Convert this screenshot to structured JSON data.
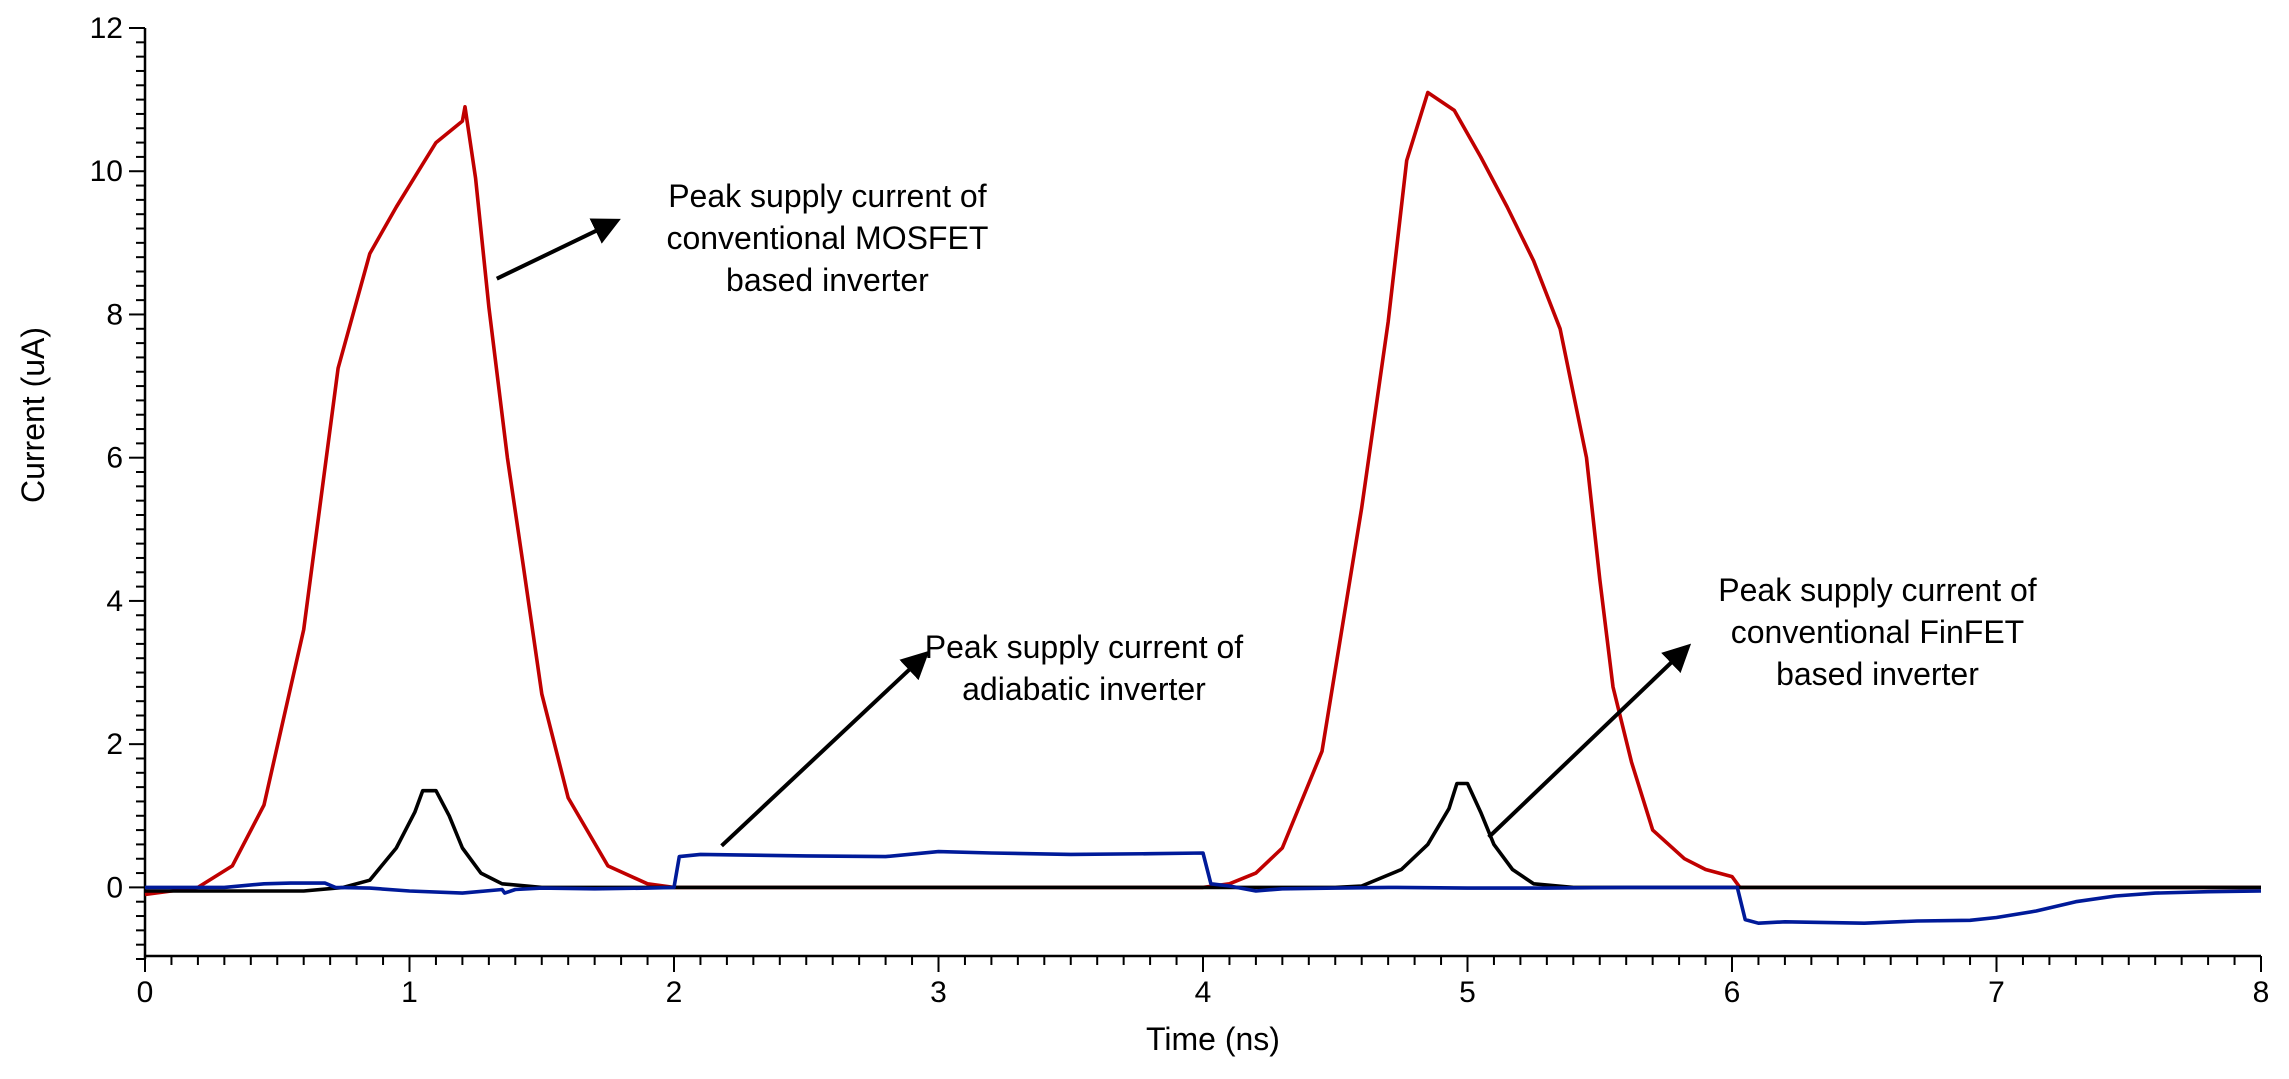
{
  "chart_data": {
    "type": "line",
    "xlabel": "Time (ns)",
    "ylabel": "Current (uA)",
    "xlim": [
      0,
      8
    ],
    "ylim": [
      -1,
      12
    ],
    "xticks": [
      0,
      1,
      2,
      3,
      4,
      5,
      6,
      7,
      8
    ],
    "yticks": [
      0,
      2,
      4,
      6,
      8,
      10,
      12
    ],
    "grid": false,
    "legend": "none",
    "series": [
      {
        "color": "#c00000",
        "points": [
          [
            0,
            -0.1
          ],
          [
            0.1,
            -0.05
          ],
          [
            0.2,
            0
          ],
          [
            0.33,
            0.3
          ],
          [
            0.45,
            1.15
          ],
          [
            0.6,
            3.6
          ],
          [
            0.73,
            7.25
          ],
          [
            0.85,
            8.85
          ],
          [
            0.95,
            9.5
          ],
          [
            1.05,
            10.1
          ],
          [
            1.1,
            10.4
          ],
          [
            1.2,
            10.7
          ],
          [
            1.21,
            10.9
          ],
          [
            1.25,
            9.9
          ],
          [
            1.3,
            8.1
          ],
          [
            1.37,
            6.0
          ],
          [
            1.43,
            4.5
          ],
          [
            1.5,
            2.7
          ],
          [
            1.6,
            1.25
          ],
          [
            1.75,
            0.3
          ],
          [
            1.9,
            0.05
          ],
          [
            2.0,
            0
          ],
          [
            3.0,
            0
          ],
          [
            4.0,
            0
          ],
          [
            4.1,
            0.05
          ],
          [
            4.2,
            0.2
          ],
          [
            4.3,
            0.55
          ],
          [
            4.45,
            1.9
          ],
          [
            4.6,
            5.3
          ],
          [
            4.7,
            7.9
          ],
          [
            4.77,
            10.15
          ],
          [
            4.85,
            11.1
          ],
          [
            4.95,
            10.85
          ],
          [
            5.05,
            10.2
          ],
          [
            5.15,
            9.5
          ],
          [
            5.25,
            8.75
          ],
          [
            5.35,
            7.8
          ],
          [
            5.45,
            6.0
          ],
          [
            5.5,
            4.3
          ],
          [
            5.55,
            2.8
          ],
          [
            5.62,
            1.75
          ],
          [
            5.7,
            0.8
          ],
          [
            5.82,
            0.4
          ],
          [
            5.9,
            0.25
          ],
          [
            6.0,
            0.15
          ],
          [
            6.03,
            0
          ],
          [
            7.0,
            0
          ],
          [
            8.0,
            0
          ]
        ]
      },
      {
        "color": "#000000",
        "points": [
          [
            0,
            -0.05
          ],
          [
            0.2,
            -0.05
          ],
          [
            0.4,
            -0.05
          ],
          [
            0.6,
            -0.05
          ],
          [
            0.75,
            0
          ],
          [
            0.85,
            0.1
          ],
          [
            0.95,
            0.55
          ],
          [
            1.02,
            1.05
          ],
          [
            1.05,
            1.35
          ],
          [
            1.1,
            1.35
          ],
          [
            1.15,
            1.0
          ],
          [
            1.2,
            0.55
          ],
          [
            1.27,
            0.2
          ],
          [
            1.35,
            0.05
          ],
          [
            1.5,
            0
          ],
          [
            2.0,
            0
          ],
          [
            3.0,
            0
          ],
          [
            4.0,
            0
          ],
          [
            4.5,
            0
          ],
          [
            4.6,
            0.02
          ],
          [
            4.75,
            0.25
          ],
          [
            4.85,
            0.6
          ],
          [
            4.93,
            1.1
          ],
          [
            4.96,
            1.45
          ],
          [
            5.0,
            1.45
          ],
          [
            5.05,
            1.05
          ],
          [
            5.1,
            0.6
          ],
          [
            5.17,
            0.25
          ],
          [
            5.25,
            0.05
          ],
          [
            5.4,
            0
          ],
          [
            6.0,
            0
          ],
          [
            7.0,
            0
          ],
          [
            8.0,
            0
          ]
        ]
      },
      {
        "color": "#001a99",
        "points": [
          [
            0,
            0
          ],
          [
            0.3,
            0
          ],
          [
            0.45,
            0.05
          ],
          [
            0.55,
            0.06
          ],
          [
            0.68,
            0.06
          ],
          [
            0.72,
            0
          ],
          [
            0.85,
            -0.01
          ],
          [
            1.0,
            -0.05
          ],
          [
            1.2,
            -0.08
          ],
          [
            1.35,
            -0.03
          ],
          [
            1.36,
            -0.08
          ],
          [
            1.4,
            -0.03
          ],
          [
            1.5,
            -0.01
          ],
          [
            1.7,
            -0.02
          ],
          [
            1.9,
            -0.01
          ],
          [
            2.0,
            0
          ],
          [
            2.02,
            0.43
          ],
          [
            2.1,
            0.46
          ],
          [
            2.5,
            0.44
          ],
          [
            2.8,
            0.43
          ],
          [
            3.0,
            0.5
          ],
          [
            3.2,
            0.48
          ],
          [
            3.5,
            0.46
          ],
          [
            3.8,
            0.47
          ],
          [
            4.0,
            0.48
          ],
          [
            4.03,
            0.05
          ],
          [
            4.1,
            0.02
          ],
          [
            4.2,
            -0.05
          ],
          [
            4.3,
            -0.02
          ],
          [
            4.5,
            -0.01
          ],
          [
            4.7,
            0
          ],
          [
            5.0,
            -0.01
          ],
          [
            5.3,
            -0.01
          ],
          [
            5.6,
            0
          ],
          [
            5.9,
            0
          ],
          [
            6.02,
            0
          ],
          [
            6.05,
            -0.45
          ],
          [
            6.1,
            -0.5
          ],
          [
            6.2,
            -0.48
          ],
          [
            6.5,
            -0.5
          ],
          [
            6.7,
            -0.47
          ],
          [
            6.9,
            -0.46
          ],
          [
            7.0,
            -0.42
          ],
          [
            7.15,
            -0.33
          ],
          [
            7.3,
            -0.2
          ],
          [
            7.45,
            -0.12
          ],
          [
            7.6,
            -0.08
          ],
          [
            7.8,
            -0.06
          ],
          [
            8.0,
            -0.05
          ]
        ]
      }
    ],
    "annotations": [
      {
        "lines": [
          "Peak supply current of",
          "conventional MOSFET",
          "based inverter"
        ],
        "text_at": [
          2.58,
          9.5
        ],
        "arrow_from": [
          1.33,
          8.5
        ],
        "arrow_to": [
          1.78,
          9.3
        ]
      },
      {
        "lines": [
          "Peak supply current of",
          "adiabatic inverter"
        ],
        "text_at": [
          3.55,
          3.2
        ],
        "arrow_from": [
          2.18,
          0.58
        ],
        "arrow_to": [
          2.95,
          3.25
        ]
      },
      {
        "lines": [
          "Peak supply current of",
          "conventional FinFET",
          "based inverter"
        ],
        "text_at": [
          6.55,
          4.0
        ],
        "arrow_from": [
          5.08,
          0.7
        ],
        "arrow_to": [
          5.83,
          3.35
        ]
      }
    ]
  }
}
